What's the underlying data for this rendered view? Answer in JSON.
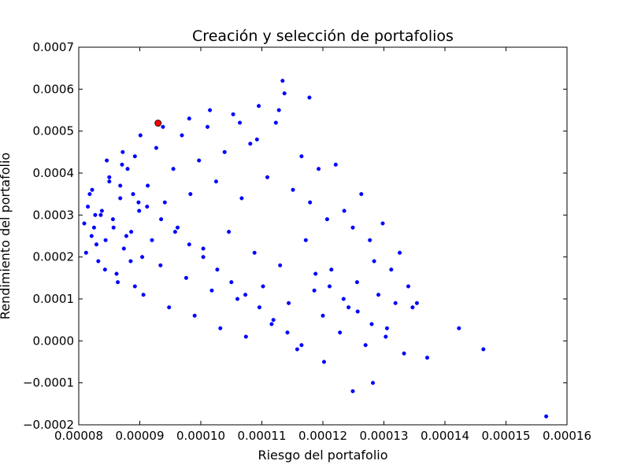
{
  "chart_data": {
    "type": "scatter",
    "title": "Creación y selección de portafolios",
    "xlabel": "Riesgo del portafolio",
    "ylabel": "Rendimiento del portafolio",
    "xlim": [
      8e-05,
      0.00016
    ],
    "ylim": [
      -0.0002,
      0.0007
    ],
    "grid": false,
    "x_ticks": [
      "0.00008",
      "0.00009",
      "0.00010",
      "0.00011",
      "0.00012",
      "0.00013",
      "0.00014",
      "0.00015",
      "0.00016"
    ],
    "y_ticks": [
      "−0.0002",
      "−0.0001",
      "0.0000",
      "0.0001",
      "0.0002",
      "0.0003",
      "0.0004",
      "0.0005",
      "0.0006",
      "0.0007"
    ],
    "series": [
      {
        "color": "#0000ff",
        "x": [
          8.09e-05,
          8.15e-05,
          8.21e-05,
          8.27e-05,
          8.12e-05,
          8.18e-05,
          8.25e-05,
          8.32e-05,
          8.38e-05,
          8.44e-05,
          8.5e-05,
          8.56e-05,
          8.62e-05,
          8.68e-05,
          8.74e-05,
          8.8e-05,
          8.86e-05,
          8.92e-05,
          8.98e-05,
          9.04e-05,
          8.22e-05,
          8.29e-05,
          8.36e-05,
          8.43e-05,
          8.5e-05,
          8.57e-05,
          8.64e-05,
          8.71e-05,
          8.78e-05,
          8.85e-05,
          8.92e-05,
          8.99e-05,
          9.06e-05,
          9.13e-05,
          9.2e-05,
          9.27e-05,
          9.34e-05,
          9.41e-05,
          9.48e-05,
          9.55e-05,
          9.62e-05,
          9.69e-05,
          9.76e-05,
          9.83e-05,
          9.9e-05,
          9.97e-05,
          0.0001004,
          0.0001011,
          0.0001018,
          0.0001025,
          0.0001032,
          0.0001039,
          0.0001046,
          0.0001053,
          0.000106,
          0.0001067,
          0.0001074,
          0.0001081,
          0.0001088,
          0.0001095,
          0.0001102,
          0.0001109,
          0.0001116,
          0.0001123,
          0.000113,
          0.0001137,
          0.0001144,
          0.0001151,
          0.0001158,
          0.0001165,
          0.0001172,
          0.0001179,
          0.0001186,
          0.0001193,
          0.00012,
          0.0001207,
          0.0001214,
          0.0001221,
          0.0001228,
          0.0001235,
          0.0001242,
          0.0001249,
          0.0001256,
          0.0001263,
          0.000127,
          0.0001277,
          0.0001284,
          0.0001291,
          0.0001298,
          0.0001305,
          0.0001312,
          0.0001319,
          0.0001326,
          0.0001333,
          0.000134,
          0.0001347,
          0.0001354,
          0.0001371,
          0.0001423,
          0.0001463,
          0.0001566,
          0.0001249,
          0.0001282,
          0.0001202,
          0.0001134,
          0.0001178,
          0.0001128,
          0.0001064,
          0.0001092,
          0.0001015,
          9.81e-05,
          9.38e-05,
          9.01e-05,
          8.72e-05,
          8.46e-05,
          8.68e-05,
          8.89e-05,
          9.12e-05,
          9.35e-05,
          9.58e-05,
          9.81e-05,
          0.0001004,
          0.0001027,
          0.000105,
          0.0001073,
          0.0001096,
          0.0001119,
          0.0001142,
          0.0001165,
          0.0001188,
          0.0001211,
          0.0001234,
          0.0001257,
          0.000128,
          0.0001303
        ],
        "y": [
          0.00028,
          0.00032,
          0.00025,
          0.0003,
          0.00021,
          0.00035,
          0.00027,
          0.00019,
          0.00031,
          0.00024,
          0.00038,
          0.00029,
          0.00016,
          0.00034,
          0.00022,
          0.00041,
          0.00026,
          0.00013,
          0.00033,
          0.0002,
          0.00036,
          0.00023,
          0.0003,
          0.00017,
          0.00039,
          0.00027,
          0.00014,
          0.00042,
          0.00025,
          0.00019,
          0.00044,
          0.00031,
          0.00011,
          0.00037,
          0.00024,
          0.00046,
          0.00018,
          0.00033,
          8e-05,
          0.00041,
          0.00027,
          0.00049,
          0.00015,
          0.00035,
          6e-05,
          0.00043,
          0.00022,
          0.00051,
          0.00012,
          0.00038,
          3e-05,
          0.00045,
          0.00026,
          0.00054,
          0.0001,
          0.00034,
          1e-05,
          0.00047,
          0.00021,
          0.00056,
          0.00013,
          0.00039,
          4e-05,
          0.00052,
          0.00018,
          0.00059,
          9e-05,
          0.00036,
          -2e-05,
          0.00044,
          0.00024,
          0.00033,
          0.00012,
          0.00041,
          6e-05,
          0.00029,
          0.00017,
          0.00042,
          2e-05,
          0.00031,
          8e-05,
          0.00027,
          0.00014,
          0.00035,
          -1e-05,
          0.00024,
          0.00019,
          0.00011,
          0.00028,
          3e-05,
          0.00017,
          9e-05,
          0.00021,
          -3e-05,
          0.00013,
          8e-05,
          9e-05,
          -4e-05,
          3e-05,
          -2e-05,
          -0.00018,
          -0.00012,
          -0.0001,
          -5e-05,
          0.00062,
          0.00058,
          0.00055,
          0.00052,
          0.00048,
          0.00055,
          0.00053,
          0.00051,
          0.00049,
          0.00045,
          0.00043,
          0.00037,
          0.00035,
          0.00032,
          0.00029,
          0.00026,
          0.00023,
          0.0002,
          0.00017,
          0.00014,
          0.00011,
          8e-05,
          5e-05,
          2e-05,
          -1e-05,
          0.00016,
          0.00013,
          0.0001,
          7e-05,
          4e-05,
          1e-05
        ]
      },
      {
        "color": "#ff0000",
        "x": [
          9.3e-05
        ],
        "y": [
          0.000519
        ]
      }
    ]
  }
}
